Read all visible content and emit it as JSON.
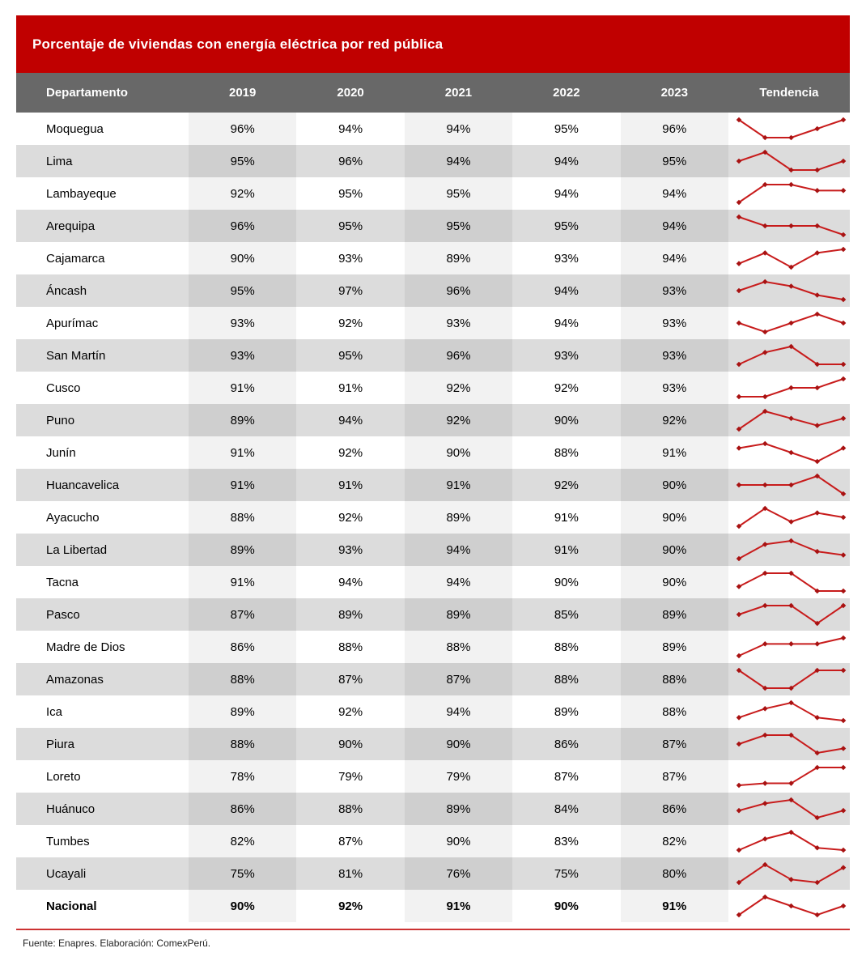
{
  "title": "Porcentaje de viviendas con energía eléctrica por red pública",
  "header": {
    "columns": [
      "Departamento",
      "2019",
      "2020",
      "2021",
      "2022",
      "2023",
      "Tendencia"
    ]
  },
  "footer": {
    "source": "Fuente: Enapres. Elaboración: ComexPerú."
  },
  "colors": {
    "title_bar_red": "#c00000",
    "header_gray": "#686868",
    "row_gray": "#dcdcdc",
    "row_gray_banded": "#cfcfcf",
    "row_white_banded": "#f2f2f2",
    "sparkline_line": "#c81c1c",
    "sparkline_marker": "#a81212",
    "divider_red": "#cc3232",
    "header_text": "#ffffff",
    "body_text": "#000000"
  },
  "chart_data": {
    "type": "table",
    "title": "Porcentaje de viviendas con energía eléctrica por red pública",
    "columns": [
      "Departamento",
      "2019",
      "2020",
      "2021",
      "2022",
      "2023",
      "Tendencia"
    ],
    "unit": "%",
    "rows": [
      {
        "name": "Moquegua",
        "values": [
          96,
          94,
          94,
          95,
          96
        ]
      },
      {
        "name": "Lima",
        "values": [
          95,
          96,
          94,
          94,
          95
        ]
      },
      {
        "name": "Lambayeque",
        "values": [
          92,
          95,
          95,
          94,
          94
        ]
      },
      {
        "name": "Arequipa",
        "values": [
          96,
          95,
          95,
          95,
          94
        ]
      },
      {
        "name": "Cajamarca",
        "values": [
          90,
          93,
          89,
          93,
          94
        ]
      },
      {
        "name": "Áncash",
        "values": [
          95,
          97,
          96,
          94,
          93
        ]
      },
      {
        "name": "Apurímac",
        "values": [
          93,
          92,
          93,
          94,
          93
        ]
      },
      {
        "name": "San Martín",
        "values": [
          93,
          95,
          96,
          93,
          93
        ]
      },
      {
        "name": "Cusco",
        "values": [
          91,
          91,
          92,
          92,
          93
        ]
      },
      {
        "name": "Puno",
        "values": [
          89,
          94,
          92,
          90,
          92
        ]
      },
      {
        "name": "Junín",
        "values": [
          91,
          92,
          90,
          88,
          91
        ]
      },
      {
        "name": "Huancavelica",
        "values": [
          91,
          91,
          91,
          92,
          90
        ]
      },
      {
        "name": "Ayacucho",
        "values": [
          88,
          92,
          89,
          91,
          90
        ]
      },
      {
        "name": "La Libertad",
        "values": [
          89,
          93,
          94,
          91,
          90
        ]
      },
      {
        "name": "Tacna",
        "values": [
          91,
          94,
          94,
          90,
          90
        ]
      },
      {
        "name": "Pasco",
        "values": [
          87,
          89,
          89,
          85,
          89
        ]
      },
      {
        "name": "Madre de Dios",
        "values": [
          86,
          88,
          88,
          88,
          89
        ]
      },
      {
        "name": "Amazonas",
        "values": [
          88,
          87,
          87,
          88,
          88
        ]
      },
      {
        "name": "Ica",
        "values": [
          89,
          92,
          94,
          89,
          88
        ]
      },
      {
        "name": "Piura",
        "values": [
          88,
          90,
          90,
          86,
          87
        ]
      },
      {
        "name": "Loreto",
        "values": [
          78,
          79,
          79,
          87,
          87
        ]
      },
      {
        "name": "Huánuco",
        "values": [
          86,
          88,
          89,
          84,
          86
        ]
      },
      {
        "name": "Tumbes",
        "values": [
          82,
          87,
          90,
          83,
          82
        ]
      },
      {
        "name": "Ucayali",
        "values": [
          75,
          81,
          76,
          75,
          80
        ]
      },
      {
        "name": "Nacional",
        "values": [
          90,
          92,
          91,
          90,
          91
        ],
        "bold": true
      }
    ],
    "sparkline": {
      "type": "line",
      "x": [
        "2019",
        "2020",
        "2021",
        "2022",
        "2023"
      ],
      "scaling": "per-row min-max",
      "legend": "none",
      "grid": "off"
    }
  }
}
